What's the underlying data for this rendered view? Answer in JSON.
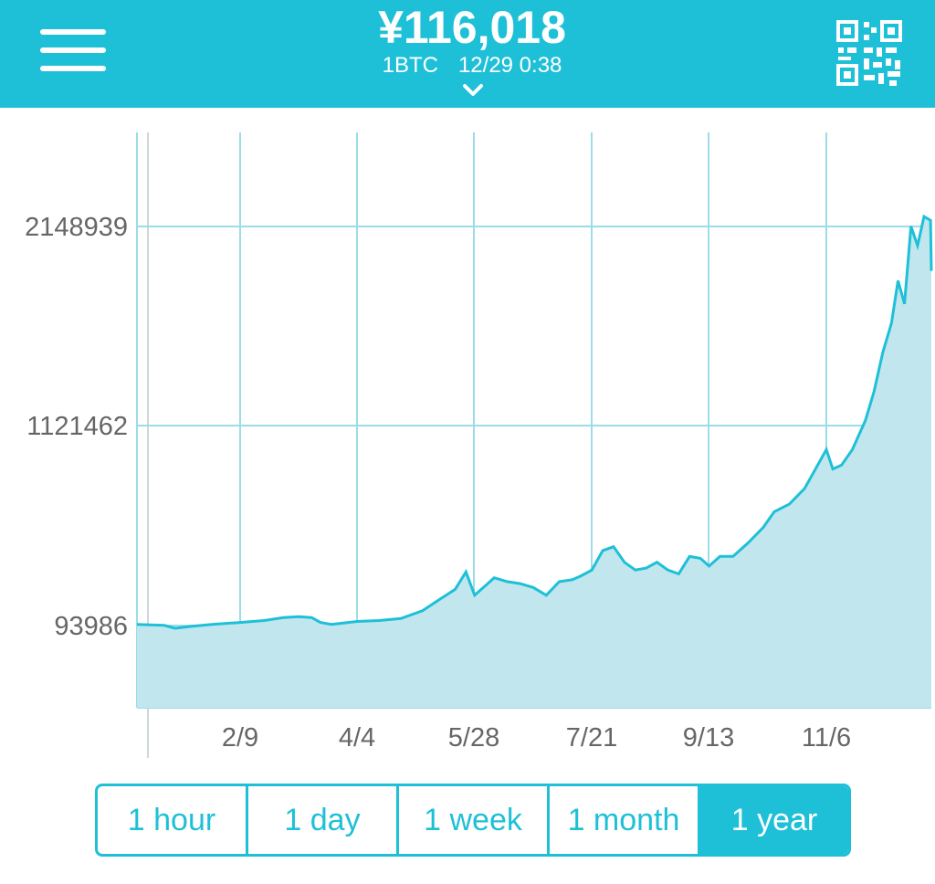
{
  "header": {
    "menu_icon": "hamburger-menu-icon",
    "price": "¥116,018",
    "pair": "1BTC",
    "timestamp": "12/29 0:38",
    "expand_icon": "chevron-down-icon",
    "qr_icon": "qr-code-icon",
    "background_color": "#1ec0d7"
  },
  "chart_data": {
    "type": "area",
    "y_ticks": [
      "2148939",
      "1121462",
      "93986"
    ],
    "x_ticks": [
      "2/9",
      "4/4",
      "5/28",
      "7/21",
      "9/13",
      "11/6"
    ],
    "grid": true,
    "color": "#1ec0d7",
    "fill_color": "#c2e6ee",
    "series": [
      {
        "x": [
          "1/1",
          "1/5",
          "1/10",
          "1/18",
          "1/27",
          "2/9",
          "2/20",
          "3/1",
          "3/8",
          "3/14",
          "3/18",
          "3/23",
          "4/4",
          "4/14",
          "4/24",
          "5/4",
          "5/12",
          "5/19",
          "5/24",
          "5/28",
          "6/2",
          "6/6",
          "6/12",
          "6/18",
          "6/24",
          "6/30",
          "7/6",
          "7/12",
          "7/16",
          "7/21",
          "7/26",
          "7/31",
          "8/5",
          "8/10",
          "8/15",
          "8/20",
          "8/25",
          "8/30",
          "9/4",
          "9/9",
          "9/13",
          "9/18",
          "9/24",
          "10/1",
          "10/8",
          "10/13",
          "10/20",
          "10/27",
          "11/1",
          "11/6",
          "11/9",
          "11/13",
          "11/18",
          "11/24",
          "11/28",
          "12/2",
          "12/6",
          "12/9",
          "12/12",
          "12/15",
          "12/18",
          "12/21",
          "12/24",
          "12/28"
        ],
        "y": [
          100000,
          95000,
          80000,
          90000,
          100000,
          110000,
          120000,
          135000,
          140000,
          135000,
          110000,
          100000,
          115000,
          120000,
          130000,
          170000,
          230000,
          280000,
          370000,
          250000,
          300000,
          340000,
          320000,
          310000,
          290000,
          250000,
          320000,
          330000,
          350000,
          380000,
          480000,
          500000,
          420000,
          380000,
          390000,
          420000,
          380000,
          360000,
          450000,
          440000,
          400000,
          450000,
          450000,
          520000,
          600000,
          680000,
          720000,
          800000,
          900000,
          1000000,
          900000,
          920000,
          1000000,
          1150000,
          1300000,
          1500000,
          1650000,
          1870000,
          1750000,
          2150000,
          2050000,
          2200000,
          2180000,
          1920000
        ]
      }
    ]
  },
  "range_tabs": {
    "items": [
      "1 hour",
      "1 day",
      "1 week",
      "1 month",
      "1 year"
    ],
    "selected": "1 year"
  }
}
